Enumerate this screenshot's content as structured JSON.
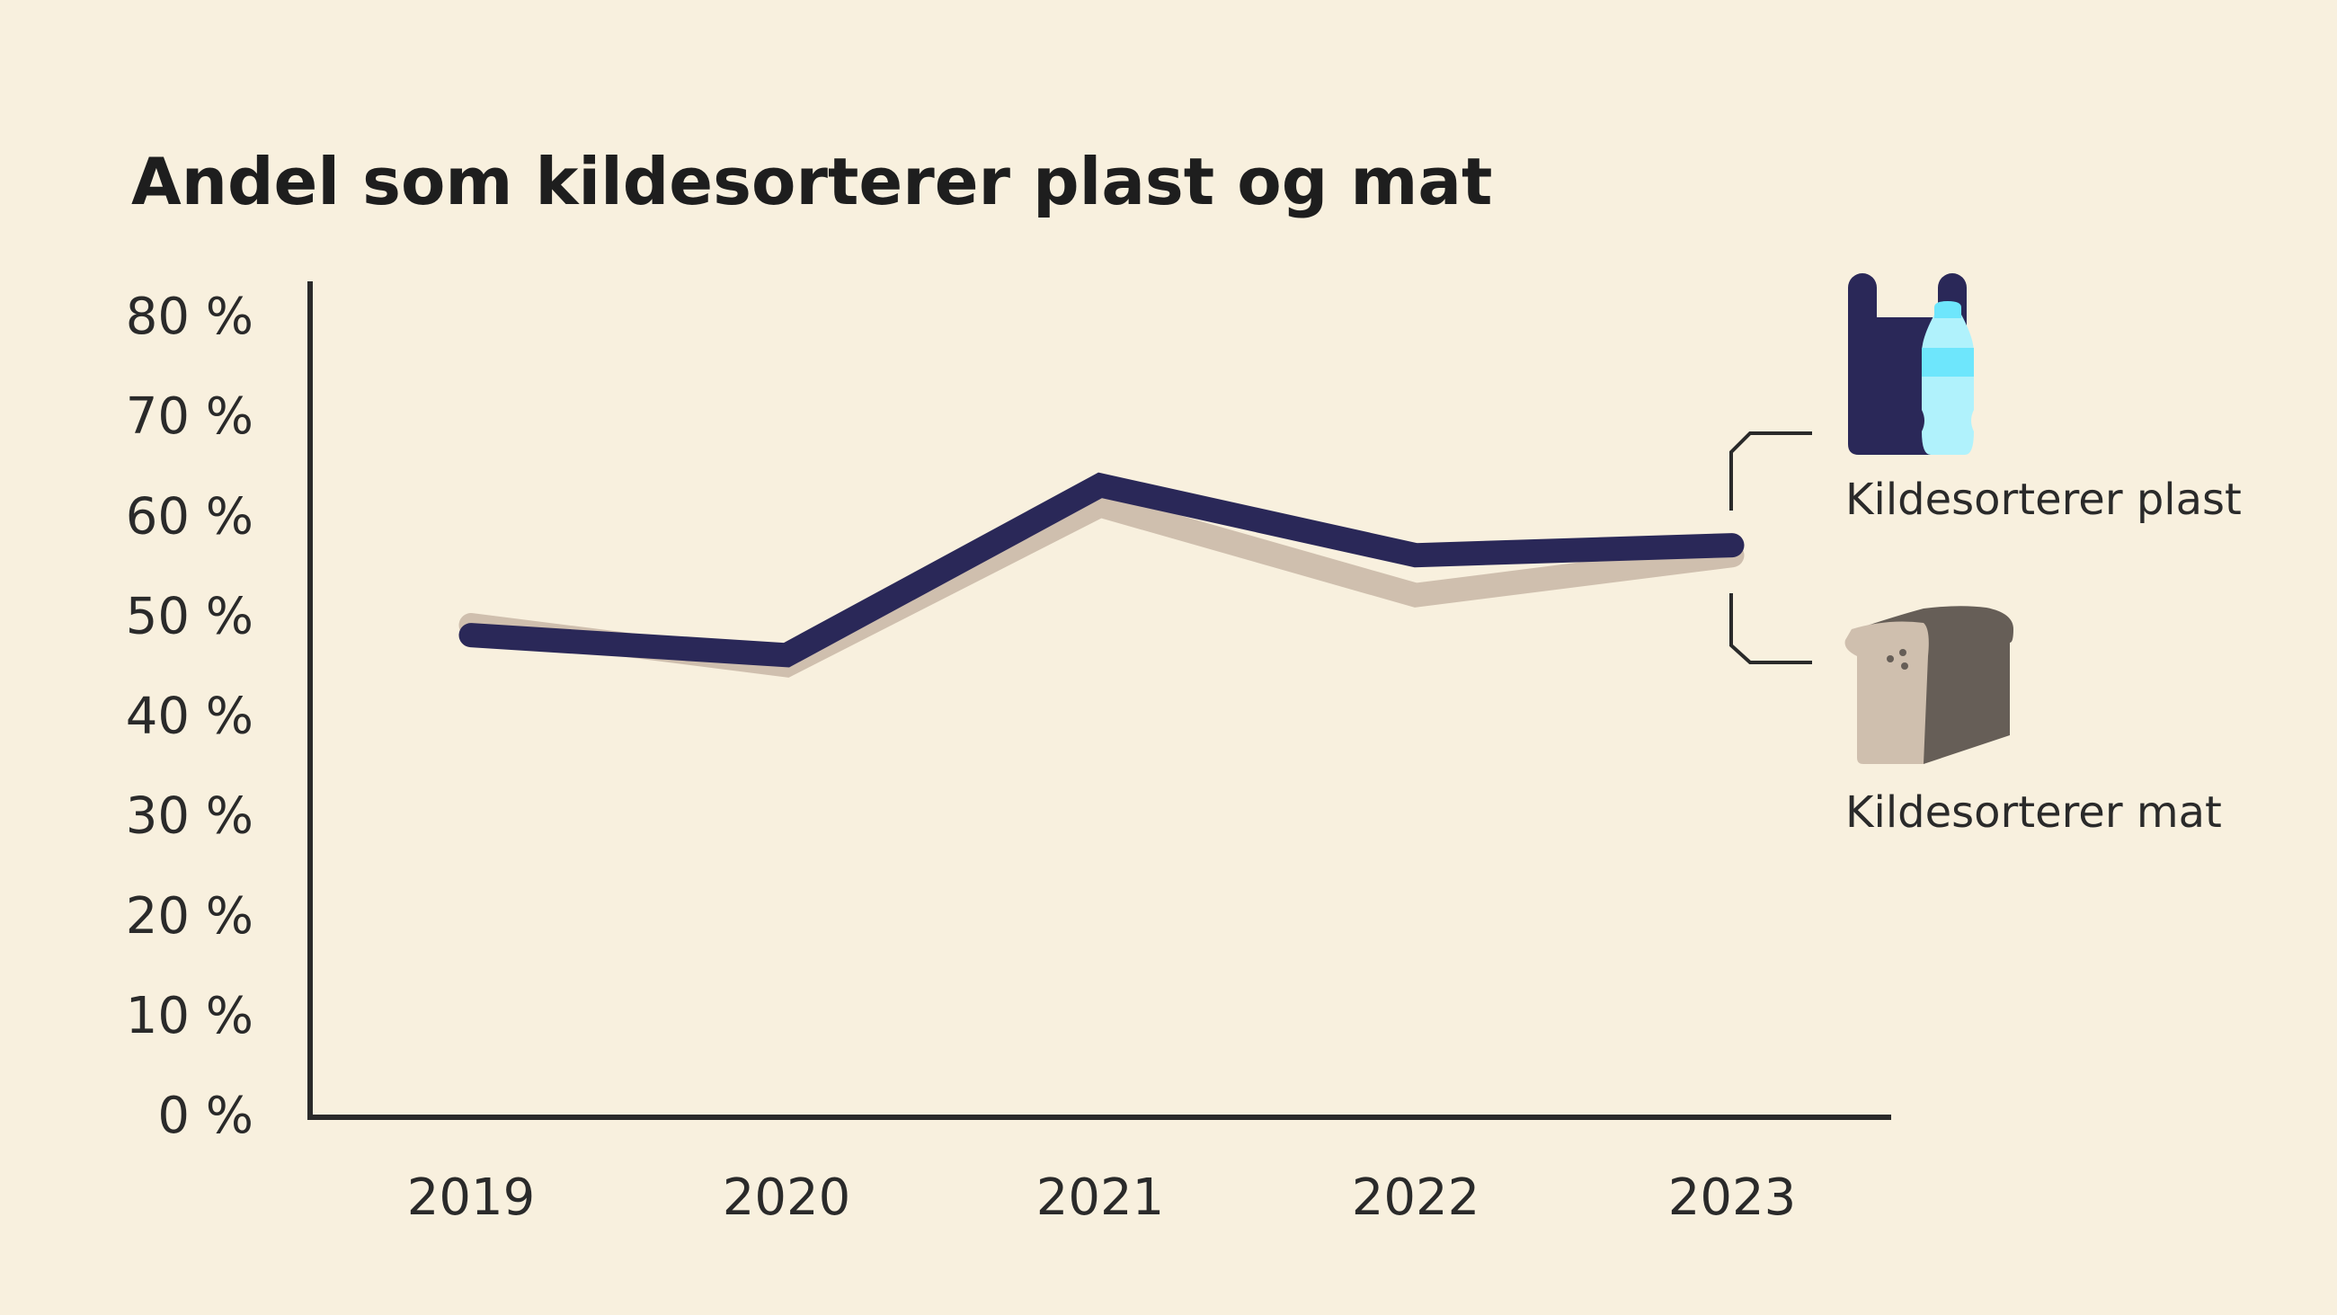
{
  "chart_data": {
    "type": "line",
    "title": "Andel som kildesorterer plast og mat",
    "xlabel": "",
    "ylabel": "",
    "categories": [
      "2019",
      "2020",
      "2021",
      "2022",
      "2023"
    ],
    "ylim": [
      0,
      80
    ],
    "yticks": [
      "0 %",
      "10 %",
      "20 %",
      "30 %",
      "40 %",
      "50 %",
      "60 %",
      "70 %",
      "80 %"
    ],
    "grid": false,
    "legend_position": "right",
    "series": [
      {
        "name": "Kildesorterer mat",
        "color": "#cfbfae",
        "values": [
          49,
          45,
          61,
          52,
          56
        ]
      },
      {
        "name": "Kildesorterer plast",
        "color": "#2a2858",
        "values": [
          48,
          46,
          63,
          56,
          57
        ]
      }
    ]
  },
  "icons": {
    "plast": "plastic-bag-bottle-icon",
    "mat": "bread-loaf-icon"
  }
}
